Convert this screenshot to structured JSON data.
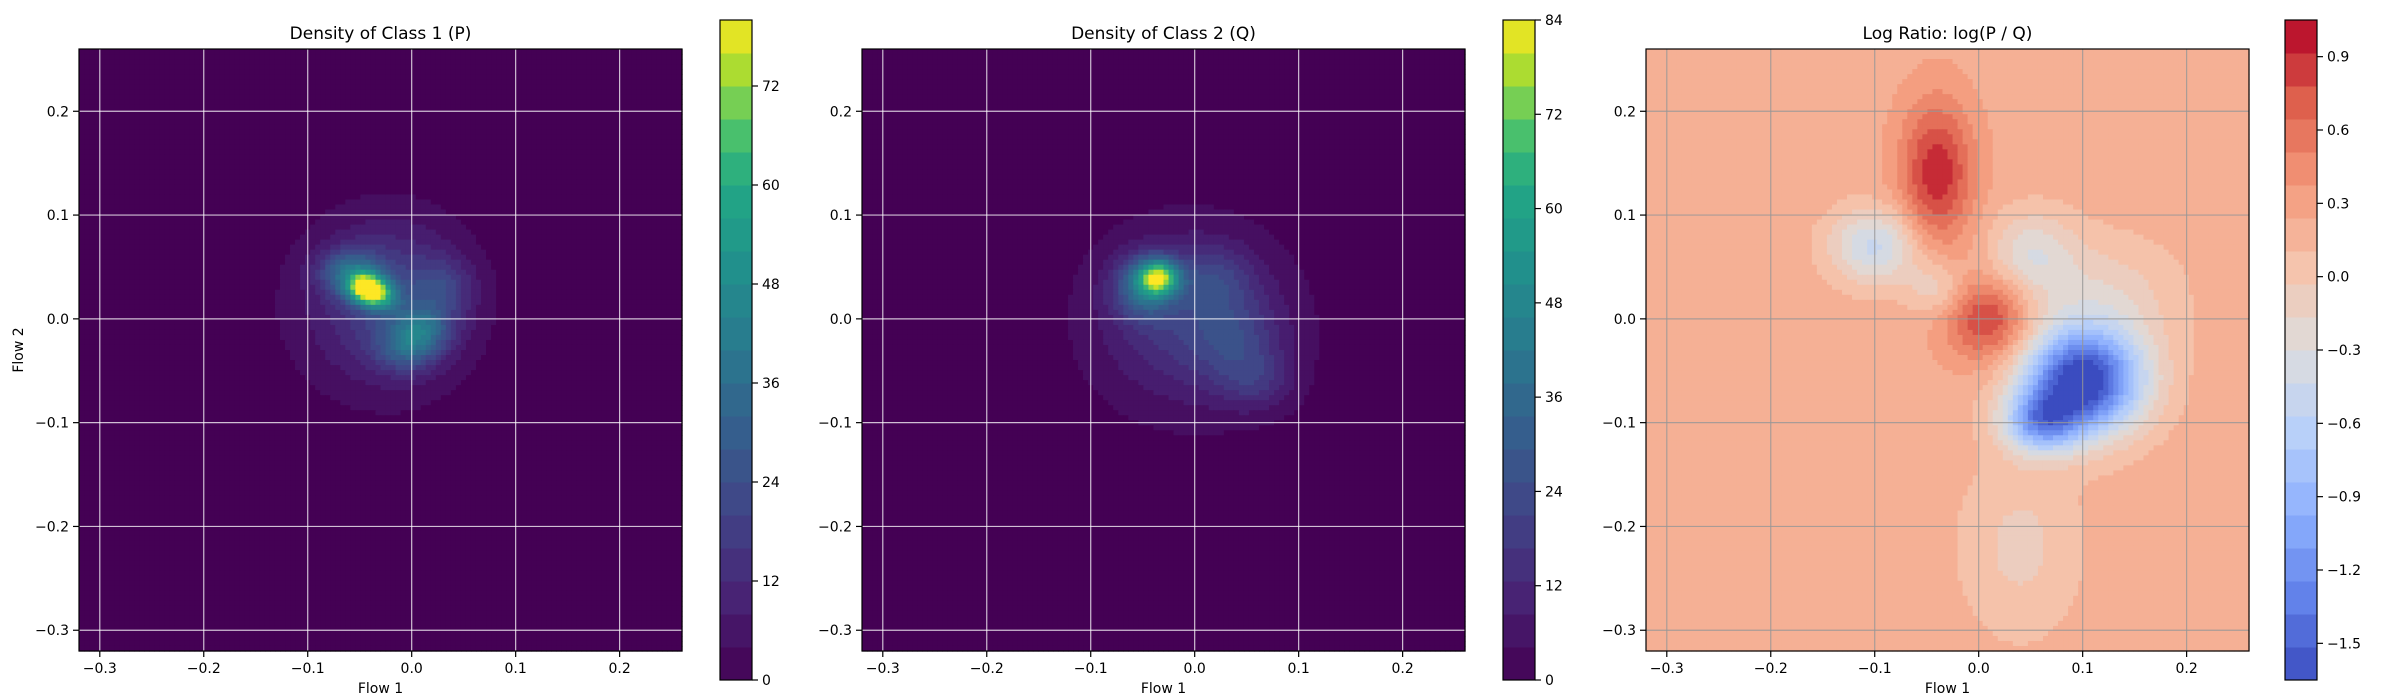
{
  "chart_data": [
    {
      "type": "heatmap",
      "title": "Density of Class 1 (P)",
      "xlabel": "Flow 1",
      "ylabel": "Flow 2",
      "xlim": [
        -0.32,
        0.26
      ],
      "ylim": [
        -0.32,
        0.26
      ],
      "xticks": [
        -0.3,
        -0.2,
        -0.1,
        0.0,
        0.1,
        0.2
      ],
      "yticks": [
        -0.3,
        -0.2,
        -0.1,
        0.0,
        0.1,
        0.2
      ],
      "xtick_labels": [
        "−0.3",
        "−0.2",
        "−0.1",
        "0.0",
        "0.1",
        "0.2"
      ],
      "ytick_labels": [
        "−0.3",
        "−0.2",
        "−0.1",
        "0.0",
        "0.1",
        "0.2"
      ],
      "grid": true,
      "colormap": "viridis",
      "colorbar": {
        "range": [
          0,
          80
        ],
        "ticks": [
          0,
          12,
          24,
          36,
          48,
          60,
          72
        ],
        "tick_labels": [
          "0",
          "12",
          "24",
          "36",
          "48",
          "60",
          "72"
        ]
      },
      "blobs": [
        {
          "x": -0.03,
          "y": 0.01,
          "sx": 0.075,
          "sy": 0.07,
          "amp": 8
        },
        {
          "x": -0.02,
          "y": 0.02,
          "sx": 0.045,
          "sy": 0.05,
          "amp": 14
        },
        {
          "x": -0.045,
          "y": 0.03,
          "sx": 0.012,
          "sy": 0.01,
          "amp": 55
        },
        {
          "x": -0.06,
          "y": 0.045,
          "sx": 0.02,
          "sy": 0.015,
          "amp": 25
        },
        {
          "x": -0.03,
          "y": 0.022,
          "sx": 0.012,
          "sy": 0.01,
          "amp": 35
        },
        {
          "x": 0.01,
          "y": -0.01,
          "sx": 0.02,
          "sy": 0.015,
          "amp": 22
        },
        {
          "x": -0.005,
          "y": -0.03,
          "sx": 0.02,
          "sy": 0.015,
          "amp": 18
        },
        {
          "x": 0.03,
          "y": 0.03,
          "sx": 0.02,
          "sy": 0.02,
          "amp": 12
        }
      ]
    },
    {
      "type": "heatmap",
      "title": "Density of Class 2 (Q)",
      "xlabel": "Flow 1",
      "ylabel": "",
      "xlim": [
        -0.32,
        0.26
      ],
      "ylim": [
        -0.32,
        0.26
      ],
      "xticks": [
        -0.3,
        -0.2,
        -0.1,
        0.0,
        0.1,
        0.2
      ],
      "yticks": [
        -0.3,
        -0.2,
        -0.1,
        0.0,
        0.1,
        0.2
      ],
      "xtick_labels": [
        "−0.3",
        "−0.2",
        "−0.1",
        "0.0",
        "0.1",
        "0.2"
      ],
      "ytick_labels": [
        "−0.3",
        "−0.2",
        "−0.1",
        "0.0",
        "0.1",
        "0.2"
      ],
      "grid": true,
      "colormap": "viridis",
      "colorbar": {
        "range": [
          0,
          84
        ],
        "ticks": [
          0,
          12,
          24,
          36,
          48,
          60,
          72,
          84
        ],
        "tick_labels": [
          "0",
          "12",
          "24",
          "36",
          "48",
          "60",
          "72",
          "84"
        ]
      },
      "blobs": [
        {
          "x": 0.0,
          "y": -0.005,
          "sx": 0.09,
          "sy": 0.08,
          "amp": 8
        },
        {
          "x": -0.01,
          "y": 0.005,
          "sx": 0.05,
          "sy": 0.05,
          "amp": 12
        },
        {
          "x": -0.035,
          "y": 0.04,
          "sx": 0.014,
          "sy": 0.012,
          "amp": 55
        },
        {
          "x": -0.05,
          "y": 0.03,
          "sx": 0.02,
          "sy": 0.02,
          "amp": 25
        },
        {
          "x": 0.04,
          "y": -0.02,
          "sx": 0.03,
          "sy": 0.03,
          "amp": 12
        },
        {
          "x": 0.06,
          "y": -0.06,
          "sx": 0.025,
          "sy": 0.02,
          "amp": 10
        },
        {
          "x": 0.02,
          "y": 0.04,
          "sx": 0.025,
          "sy": 0.02,
          "amp": 10
        }
      ]
    },
    {
      "type": "heatmap",
      "title": "Log Ratio: log(P / Q)",
      "xlabel": "Flow 1",
      "ylabel": "",
      "xlim": [
        -0.32,
        0.26
      ],
      "ylim": [
        -0.32,
        0.26
      ],
      "xticks": [
        -0.3,
        -0.2,
        -0.1,
        0.0,
        0.1,
        0.2
      ],
      "yticks": [
        -0.3,
        -0.2,
        -0.1,
        0.0,
        0.1,
        0.2
      ],
      "xtick_labels": [
        "−0.3",
        "−0.2",
        "−0.1",
        "0.0",
        "0.1",
        "0.2"
      ],
      "ytick_labels": [
        "−0.3",
        "−0.2",
        "−0.1",
        "0.0",
        "0.1",
        "0.2"
      ],
      "grid": true,
      "colormap": "coolwarm",
      "colorbar": {
        "range": [
          -1.65,
          1.05
        ],
        "ticks": [
          -1.5,
          -1.2,
          -0.9,
          -0.6,
          -0.3,
          0.0,
          0.3,
          0.6,
          0.9
        ],
        "tick_labels": [
          "−1.5",
          "−1.2",
          "−0.9",
          "−0.6",
          "−0.3",
          "0.0",
          "0.3",
          "0.6",
          "0.9"
        ]
      },
      "baseline": 0.18,
      "blobs": [
        {
          "x": -0.04,
          "y": 0.14,
          "sx": 0.025,
          "sy": 0.05,
          "amp": 0.7
        },
        {
          "x": 0.01,
          "y": 0.0,
          "sx": 0.03,
          "sy": 0.03,
          "amp": 0.65
        },
        {
          "x": 0.1,
          "y": -0.06,
          "sx": 0.04,
          "sy": 0.035,
          "amp": -1.9
        },
        {
          "x": 0.06,
          "y": -0.1,
          "sx": 0.025,
          "sy": 0.02,
          "amp": -1.0
        },
        {
          "x": -0.1,
          "y": 0.07,
          "sx": 0.03,
          "sy": 0.025,
          "amp": -0.65
        },
        {
          "x": 0.05,
          "y": 0.06,
          "sx": 0.03,
          "sy": 0.03,
          "amp": -0.45
        },
        {
          "x": -0.04,
          "y": 0.03,
          "sx": 0.02,
          "sy": 0.02,
          "amp": -0.35
        },
        {
          "x": 0.12,
          "y": 0.02,
          "sx": 0.05,
          "sy": 0.04,
          "amp": -0.3
        },
        {
          "x": 0.04,
          "y": -0.22,
          "sx": 0.04,
          "sy": 0.06,
          "amp": -0.25
        }
      ]
    }
  ]
}
